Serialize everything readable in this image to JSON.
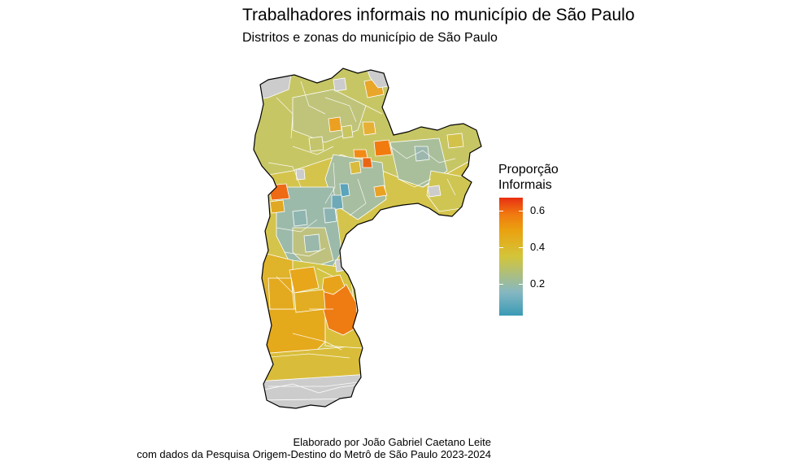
{
  "title": "Trabalhadores informais no município de São Paulo",
  "subtitle": "Distritos e zonas do município de São Paulo",
  "legend": {
    "title_line1": "Proporção",
    "title_line2": "Informais",
    "ticks": [
      {
        "label": "0.2",
        "value": 0.2
      },
      {
        "label": "0.4",
        "value": 0.4
      },
      {
        "label": "0.6",
        "value": 0.6
      }
    ],
    "range": [
      0.03,
      0.67
    ],
    "colors": {
      "low": "#3a9ab5",
      "mid": "#d3c53a",
      "high": "#e82f12",
      "missing": "#cccccc"
    }
  },
  "caption": {
    "line1": "Elaborado por João Gabriel Caetano Leite",
    "line2": "com dados da Pesquisa Origem-Destino do Metrô de São Paulo 2023-2024"
  }
}
